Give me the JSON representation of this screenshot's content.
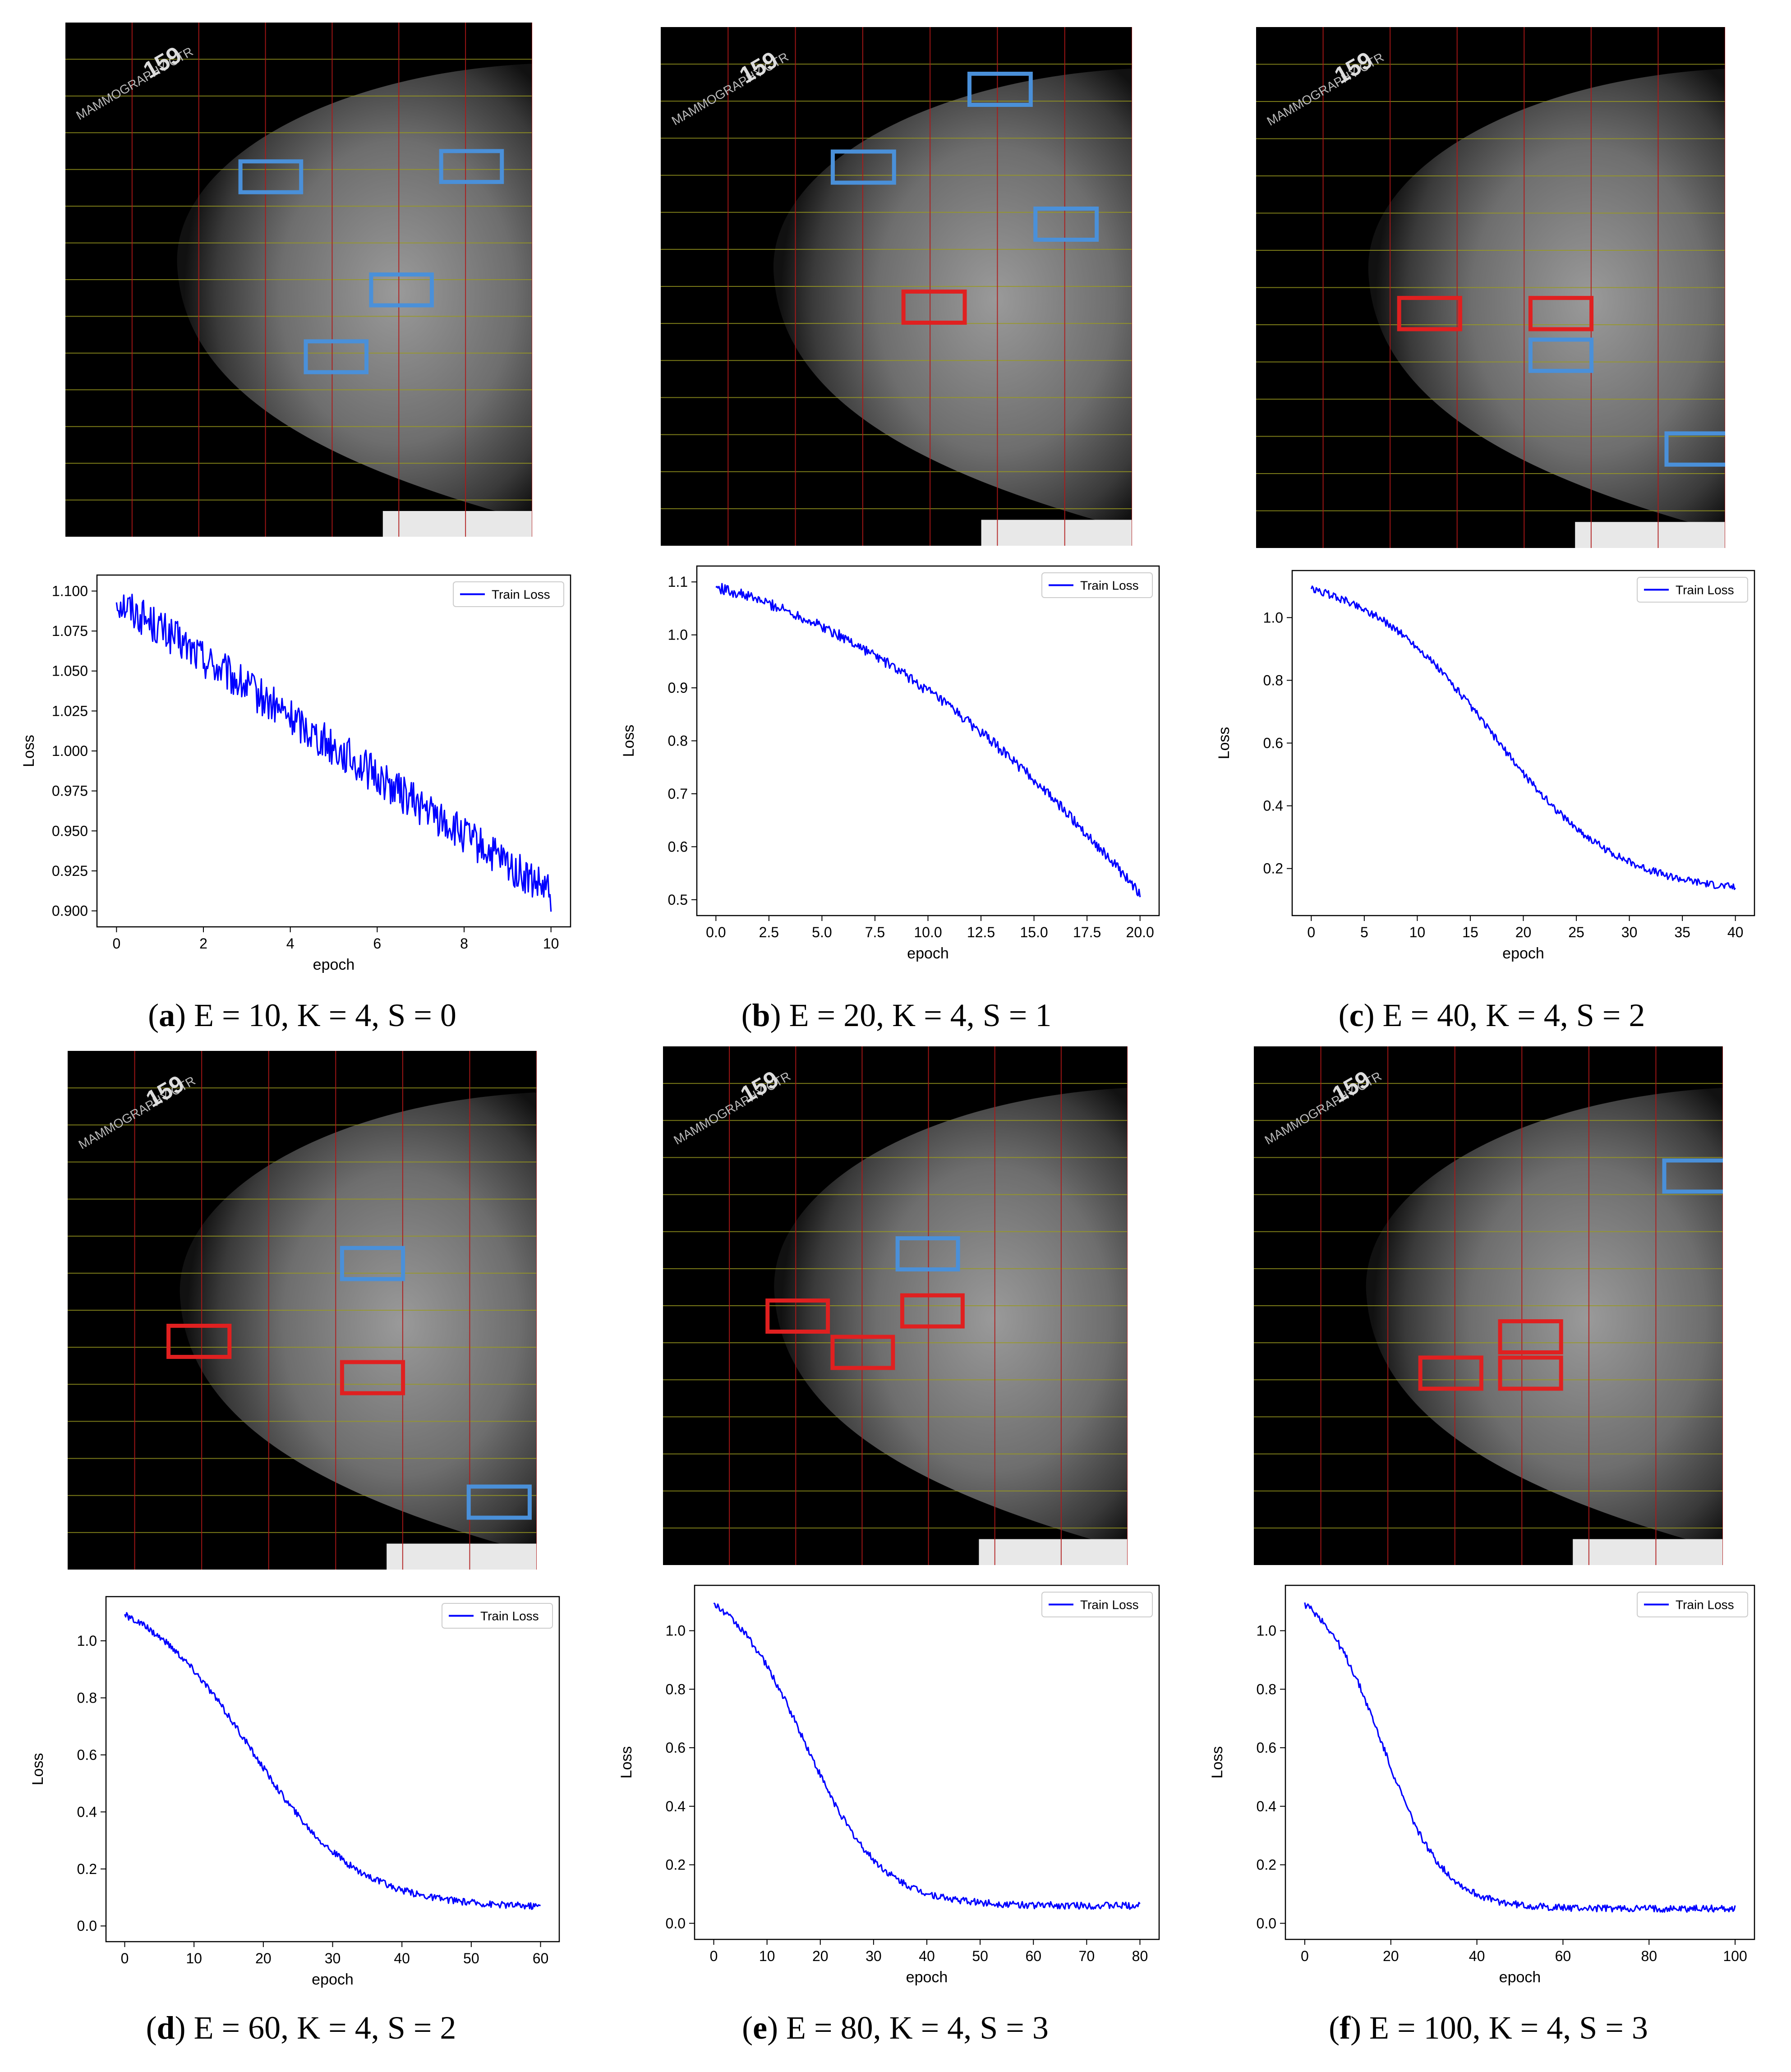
{
  "panels": [
    {
      "id": "a",
      "caption_letter": "a",
      "caption_text": "E = 10, K = 4, S = 0",
      "mammogram": {
        "overlay_text": "MAMMOGRAPHY CTR",
        "number": "159"
      },
      "boxes": [
        {
          "color": "#4a90d9",
          "label": "blue"
        },
        {
          "color": "#4a90d9",
          "label": "blue"
        },
        {
          "color": "#4a90d9",
          "label": "blue"
        },
        {
          "color": "#4a90d9",
          "label": "blue"
        }
      ],
      "chart_data": {
        "type": "line",
        "legend": "Train Loss",
        "legend_position": "top-right",
        "xlabel": "epoch",
        "ylabel": "Loss",
        "xlim": [
          0,
          10
        ],
        "ylim": [
          0.9,
          1.1
        ],
        "xticks": [
          "0",
          "2",
          "4",
          "6",
          "8",
          "10"
        ],
        "yticks": [
          "0.900",
          "0.925",
          "0.950",
          "0.975",
          "1.000",
          "1.025",
          "1.050",
          "1.075",
          "1.100"
        ],
        "series": [
          {
            "name": "Train Loss",
            "shape": "linear",
            "start": 1.095,
            "end": 0.91,
            "noise": 0.012,
            "color": "#0000ff"
          }
        ]
      }
    },
    {
      "id": "b",
      "caption_letter": "b",
      "caption_text": "E = 20, K = 4, S = 1",
      "mammogram": {
        "overlay_text": "MAMMOGRAPHY CTR",
        "number": "159"
      },
      "boxes": [
        {
          "color": "#4a90d9",
          "label": "blue"
        },
        {
          "color": "#4a90d9",
          "label": "blue"
        },
        {
          "color": "#4a90d9",
          "label": "blue"
        },
        {
          "color": "#e02020",
          "label": "red"
        }
      ],
      "chart_data": {
        "type": "line",
        "legend": "Train Loss",
        "legend_position": "top-right",
        "xlabel": "epoch",
        "ylabel": "Loss",
        "xlim": [
          0,
          20
        ],
        "ylim": [
          0.5,
          1.1
        ],
        "xticks": [
          "0.0",
          "2.5",
          "5.0",
          "7.5",
          "10.0",
          "12.5",
          "15.0",
          "17.5",
          "20.0"
        ],
        "yticks": [
          "0.5",
          "0.6",
          "0.7",
          "0.8",
          "0.9",
          "1.0",
          "1.1"
        ],
        "series": [
          {
            "name": "Train Loss",
            "shape": "concave",
            "start": 1.09,
            "end": 0.51,
            "noise": 0.01,
            "color": "#0000ff"
          }
        ]
      }
    },
    {
      "id": "c",
      "caption_letter": "c",
      "caption_text": "E = 40, K = 4, S = 2",
      "mammogram": {
        "overlay_text": "MAMMOGRAPHY CTR",
        "number": "159"
      },
      "boxes": [
        {
          "color": "#e02020",
          "label": "red"
        },
        {
          "color": "#e02020",
          "label": "red"
        },
        {
          "color": "#4a90d9",
          "label": "blue"
        },
        {
          "color": "#4a90d9",
          "label": "blue"
        }
      ],
      "chart_data": {
        "type": "line",
        "legend": "Train Loss",
        "legend_position": "top-right",
        "xlabel": "epoch",
        "ylabel": "Loss",
        "xlim": [
          0,
          40
        ],
        "ylim": [
          0.1,
          1.1
        ],
        "xticks": [
          "0",
          "5",
          "10",
          "15",
          "20",
          "25",
          "30",
          "35",
          "40"
        ],
        "yticks": [
          "0.2",
          "0.4",
          "0.6",
          "0.8",
          "1.0"
        ],
        "series": [
          {
            "name": "Train Loss",
            "shape": "sigmoid",
            "start": 1.09,
            "end": 0.14,
            "mid": 17,
            "k": 0.17,
            "noise": 0.012,
            "color": "#0000ff"
          }
        ]
      }
    },
    {
      "id": "d",
      "caption_letter": "d",
      "caption_text": "E = 60, K = 4, S = 2",
      "mammogram": {
        "overlay_text": "MAMMOGRAPHY CTR",
        "number": "159"
      },
      "boxes": [
        {
          "color": "#4a90d9",
          "label": "blue"
        },
        {
          "color": "#e02020",
          "label": "red"
        },
        {
          "color": "#e02020",
          "label": "red"
        },
        {
          "color": "#4a90d9",
          "label": "blue"
        }
      ],
      "chart_data": {
        "type": "line",
        "legend": "Train Loss",
        "legend_position": "top-right",
        "xlabel": "epoch",
        "ylabel": "Loss",
        "xlim": [
          0,
          60
        ],
        "ylim": [
          0.0,
          1.1
        ],
        "xticks": [
          "0",
          "10",
          "20",
          "30",
          "40",
          "50",
          "60"
        ],
        "yticks": [
          "0.0",
          "0.2",
          "0.4",
          "0.6",
          "0.8",
          "1.0"
        ],
        "series": [
          {
            "name": "Train Loss",
            "shape": "sigmoid",
            "start": 1.09,
            "end": 0.07,
            "mid": 18,
            "k": 0.13,
            "noise": 0.012,
            "color": "#0000ff"
          }
        ]
      }
    },
    {
      "id": "e",
      "caption_letter": "e",
      "caption_text": "E = 80, K = 4, S = 3",
      "mammogram": {
        "overlay_text": "MAMMOGRAPHY CTR",
        "number": "159"
      },
      "boxes": [
        {
          "color": "#4a90d9",
          "label": "blue"
        },
        {
          "color": "#e02020",
          "label": "red"
        },
        {
          "color": "#e02020",
          "label": "red"
        },
        {
          "color": "#e02020",
          "label": "red"
        }
      ],
      "chart_data": {
        "type": "line",
        "legend": "Train Loss",
        "legend_position": "top-right",
        "xlabel": "epoch",
        "ylabel": "Loss",
        "xlim": [
          0,
          80
        ],
        "ylim": [
          0.0,
          1.1
        ],
        "xticks": [
          "0",
          "10",
          "20",
          "30",
          "40",
          "50",
          "60",
          "70",
          "80"
        ],
        "yticks": [
          "0.0",
          "0.2",
          "0.4",
          "0.6",
          "0.8",
          "1.0"
        ],
        "series": [
          {
            "name": "Train Loss",
            "shape": "sigmoid",
            "start": 1.09,
            "end": 0.06,
            "mid": 17,
            "k": 0.14,
            "noise": 0.012,
            "color": "#0000ff"
          }
        ]
      }
    },
    {
      "id": "f",
      "caption_letter": "f",
      "caption_text": "E = 100, K = 4, S = 3",
      "mammogram": {
        "overlay_text": "MAMMOGRAPHY CTR",
        "number": "159"
      },
      "boxes": [
        {
          "color": "#4a90d9",
          "label": "blue"
        },
        {
          "color": "#e02020",
          "label": "red"
        },
        {
          "color": "#e02020",
          "label": "red"
        },
        {
          "color": "#e02020",
          "label": "red"
        }
      ],
      "chart_data": {
        "type": "line",
        "legend": "Train Loss",
        "legend_position": "top-right",
        "xlabel": "epoch",
        "ylabel": "Loss",
        "xlim": [
          0,
          100
        ],
        "ylim": [
          0.0,
          1.1
        ],
        "xticks": [
          "0",
          "20",
          "40",
          "60",
          "80",
          "100"
        ],
        "yticks": [
          "0.0",
          "0.2",
          "0.4",
          "0.6",
          "0.8",
          "1.0"
        ],
        "series": [
          {
            "name": "Train Loss",
            "shape": "sigmoid",
            "start": 1.09,
            "end": 0.05,
            "mid": 18,
            "k": 0.14,
            "noise": 0.012,
            "color": "#0000ff"
          }
        ]
      }
    }
  ]
}
